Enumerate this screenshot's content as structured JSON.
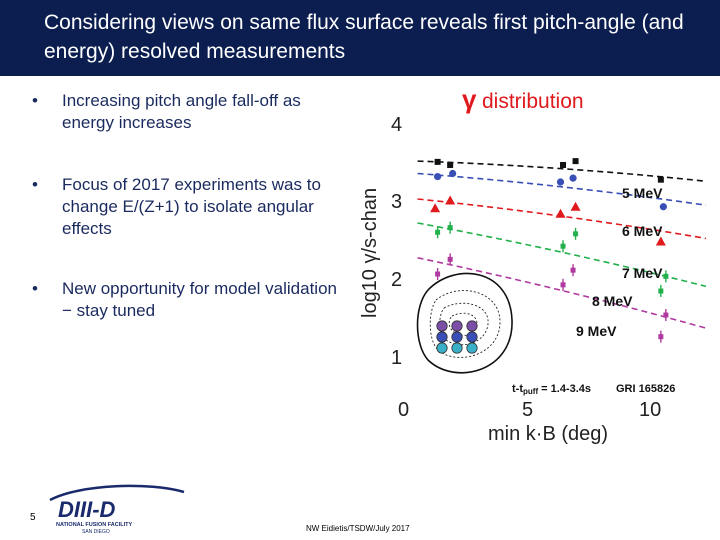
{
  "slide": {
    "title": "Considering views on same flux surface reveals first pitch-angle (and energy) resolved measurements",
    "bullets": [
      {
        "marker": "•",
        "text": "Increasing pitch angle fall-off as energy increases"
      },
      {
        "marker": "•",
        "text": "Focus of 2017 experiments was to change E/(Z+1) to isolate angular effects"
      },
      {
        "marker": "•",
        "text": "New opportunity for model validation − stay tuned"
      }
    ],
    "slide_number": "5",
    "footer": "NW Eidietis/TSDW/July 2017",
    "logo": {
      "main": "DIII-D",
      "sub": "NATIONAL FUSION FACILITY",
      "place": "SAN DIEGO",
      "color": "#1a2a6c"
    }
  },
  "chart_data": {
    "type": "scatter",
    "title_symbol": "γ",
    "title": "distribution",
    "xlabel": "min k·B (deg)",
    "ylabel": "log10 γ/s-chan",
    "xlim": [
      0,
      12
    ],
    "ylim": [
      1,
      4
    ],
    "x_ticks": [
      "0",
      "5",
      "10"
    ],
    "y_ticks": [
      "1",
      "2",
      "3",
      "4"
    ],
    "series": [
      {
        "name": "",
        "color": "#111111",
        "marker": "square",
        "x": [
          1.3,
          1.8,
          6.3,
          6.8,
          10.2
        ],
        "y": [
          3.51,
          3.47,
          3.47,
          3.52,
          3.28
        ],
        "fit": [
          [
            0.5,
            3.52
          ],
          [
            12,
            3.26
          ]
        ]
      },
      {
        "name": "5 MeV",
        "color": "#3a4fb5",
        "marker": "circle",
        "x": [
          1.3,
          1.9,
          6.2,
          6.7,
          10.3
        ],
        "y": [
          3.32,
          3.36,
          3.25,
          3.3,
          2.93
        ],
        "fit": [
          [
            0.5,
            3.36
          ],
          [
            12,
            2.95
          ]
        ]
      },
      {
        "name": "6 MeV",
        "color": "#e0191d",
        "marker": "triangle",
        "x": [
          1.2,
          1.8,
          6.2,
          6.8,
          10.2
        ],
        "y": [
          2.91,
          3.01,
          2.84,
          2.93,
          2.48
        ],
        "fit": [
          [
            0.5,
            3.03
          ],
          [
            12,
            2.52
          ]
        ]
      },
      {
        "name": "7 MeV",
        "color": "#22b14c",
        "marker": "square-small",
        "x": [
          1.3,
          1.8,
          6.3,
          6.8,
          10.2,
          10.4
        ],
        "y": [
          2.6,
          2.66,
          2.42,
          2.58,
          1.84,
          2.03
        ],
        "fit": [
          [
            0.5,
            2.72
          ],
          [
            12,
            1.9
          ]
        ]
      },
      {
        "name": "8 MeV",
        "color": "#b03aa0",
        "marker": "square-small",
        "x": [
          1.3,
          1.8,
          6.3,
          6.7,
          10.2,
          10.4
        ],
        "y": [
          2.06,
          2.25,
          1.92,
          2.11,
          1.25,
          1.53
        ],
        "fit": [
          [
            0.5,
            2.27
          ],
          [
            12,
            1.36
          ]
        ]
      }
    ],
    "annotations": {
      "energy_labels": [
        "5 MeV",
        "6 MeV",
        "7 MeV",
        "8 MeV",
        "9 MeV"
      ],
      "time_label": "t-t",
      "time_sub": "puff",
      "time_value": " = 1.4-3.4s",
      "shot_label": "GRI 165826"
    },
    "inset": {
      "type": "flux-surface-cross-section",
      "chord_colors": [
        "#7b4fa8",
        "#3a4fb5",
        "#3ab0c8"
      ]
    }
  }
}
